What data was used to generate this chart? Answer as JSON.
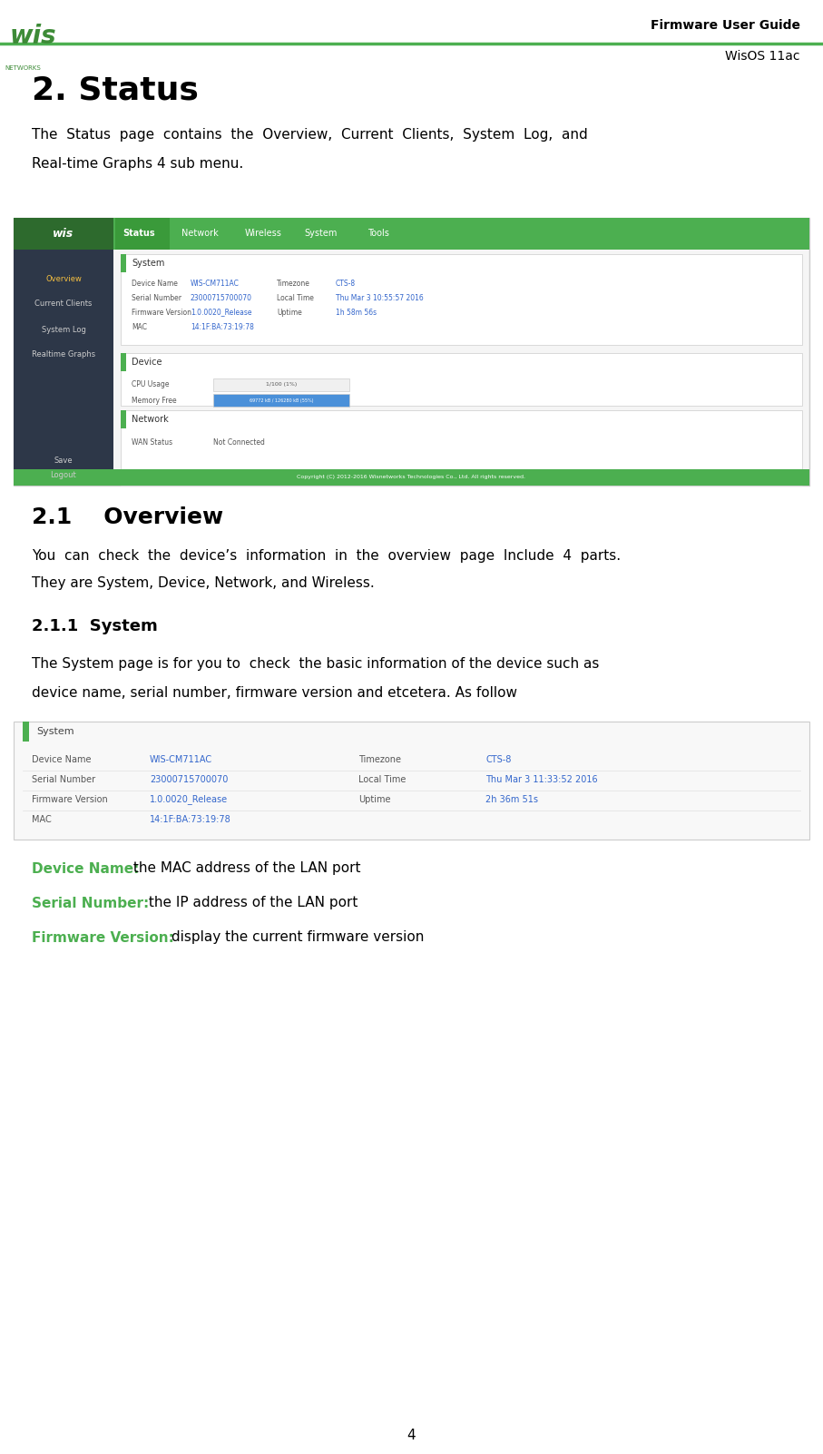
{
  "page_width": 9.07,
  "page_height": 16.02,
  "bg_color": "#ffffff",
  "green_color": "#4caf50",
  "dark_green": "#3d8b37",
  "header_line_color": "#4caf50",
  "title_text": "2. Status",
  "title_fontsize": 28,
  "title_bold": true,
  "header_right_text": "Firmware User Guide",
  "header_sub_text": "WisOS 11ac",
  "body_text_1": "The  Status  page  contains  the  Overview,  Current  Clients,  System  Log,  and\n\nReal-time Graphs 4 sub menu.",
  "section_21_title": "2.1    Overview",
  "section_21_text": "You  can  check  the  device’s  information  in  the  overview  page  Include  4  parts.\nThey are System, Device, Network, and Wireless.",
  "section_211_title": "2.1.1  System",
  "section_211_text": "The System page is for you to  check  the basic information of the device such as\ndevice name, serial number, firmware version and etcetera. As follow",
  "bullet_1_label": "Device Name:",
  "bullet_1_text": " the MAC address of the LAN port",
  "bullet_2_label": "Serial Number:",
  "bullet_2_text": " the IP address of the LAN port",
  "bullet_3_label": "Firmware Version:",
  "bullet_3_text": " display the current firmware version",
  "page_number": "4",
  "nav_items": [
    "Status",
    "Network",
    "Wireless",
    "System",
    "Tools"
  ],
  "sidebar_items": [
    "Overview",
    "Current Clients",
    "System Log",
    "Realtime Graphs"
  ],
  "nav_bg": "#4caf50",
  "sidebar_bg": "#2d3748",
  "content_bg": "#f0f0f0",
  "card_bg": "#ffffff",
  "table_header_bg": "#e8e8e8",
  "system_rows": [
    [
      "Device Name",
      "WIS-CM711AC",
      "Timezone",
      "CTS-8"
    ],
    [
      "Serial Number",
      "23000715700070",
      "Local Time",
      "Thu Mar 3 10:55:57 2016"
    ],
    [
      "Firmware Version",
      "1.0.0020_Release",
      "Uptime",
      "1h 58m 56s"
    ],
    [
      "MAC",
      "14:1F:BA:73:19:78",
      "",
      ""
    ]
  ],
  "system_rows2": [
    [
      "Device Name",
      "WIS-CM711AC",
      "Timezone",
      "CTS-8"
    ],
    [
      "Serial Number",
      "23000715700070",
      "Local Time",
      "Thu Mar 3 11:33:52 2016"
    ],
    [
      "Firmware Version",
      "1.0.0020_Release",
      "Uptime",
      "2h 36m 51s"
    ],
    [
      "MAC",
      "14:1F:BA:73:19:78",
      "",
      ""
    ]
  ]
}
